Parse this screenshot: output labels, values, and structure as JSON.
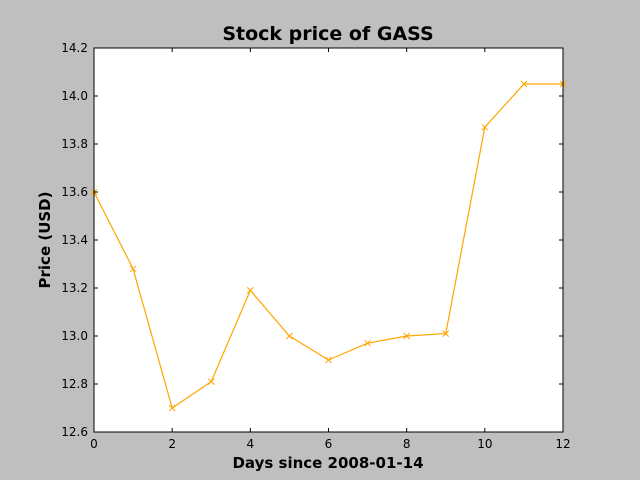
{
  "chart_data": {
    "type": "line",
    "title": "Stock price of GASS",
    "xlabel": "Days since 2008-01-14",
    "ylabel": "Price (USD)",
    "x": [
      0,
      1,
      2,
      3,
      4,
      5,
      6,
      7,
      8,
      9,
      10,
      11,
      12
    ],
    "series": [
      {
        "values": [
          13.6,
          13.28,
          12.7,
          12.81,
          13.19,
          13.0,
          12.9,
          12.97,
          13.0,
          13.01,
          13.87,
          14.05,
          14.05
        ],
        "color": "#ffa500",
        "marker": "x"
      }
    ],
    "xlim": [
      0,
      12
    ],
    "ylim": [
      12.6,
      14.2
    ],
    "xticks": [
      0,
      2,
      4,
      6,
      8,
      10,
      12
    ],
    "yticks": [
      12.6,
      12.8,
      13.0,
      13.2,
      13.4,
      13.6,
      13.8,
      14.0,
      14.2
    ],
    "ytick_labels": [
      "12.6",
      "12.8",
      "13.0",
      "13.2",
      "13.4",
      "13.6",
      "13.8",
      "14.0",
      "14.2"
    ],
    "grid": false,
    "legend": "none",
    "background_color": "#bfbfbf",
    "plot_background_color": "#ffffff"
  }
}
